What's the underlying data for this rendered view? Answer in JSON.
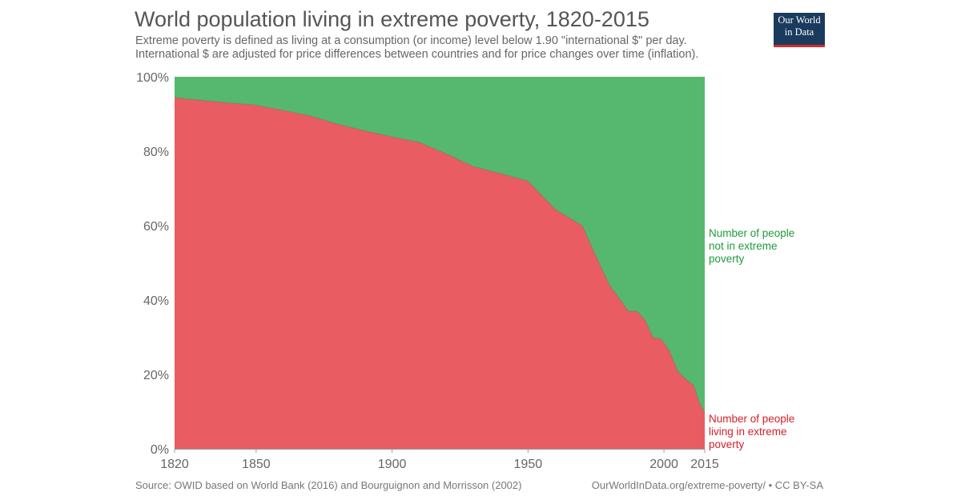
{
  "header": {
    "title": "World population living in extreme poverty, 1820-2015",
    "subtitle_line1": "Extreme poverty is defined as living at a consumption (or income) level below 1.90 \"international $\" per day.",
    "subtitle_line2": "International $ are adjusted for price differences between countries and for price changes over time (inflation)."
  },
  "logo": {
    "line1": "Our World",
    "line2": "in Data"
  },
  "footer": {
    "source": "Source: OWID based on World Bank (2016) and Bourguignon and Morrisson (2002)",
    "license": "OurWorldInData.org/extreme-poverty/ • CC BY-SA"
  },
  "colors": {
    "poverty": "#e95c62",
    "not_poverty": "#56b86f",
    "poverty_label": "#d6202a",
    "not_poverty_label": "#1f9a3d"
  },
  "chart_data": {
    "type": "area",
    "stacked": true,
    "percent": true,
    "title": "World population living in extreme poverty, 1820-2015",
    "xlabel": "",
    "ylabel": "",
    "xlim": [
      1820,
      2015
    ],
    "ylim": [
      0,
      100
    ],
    "x_ticks": [
      1820,
      1850,
      1900,
      1950,
      2000,
      2015
    ],
    "y_ticks": [
      "0%",
      "20%",
      "40%",
      "60%",
      "80%",
      "100%"
    ],
    "grid": true,
    "x": [
      1820,
      1830,
      1840,
      1850,
      1860,
      1870,
      1880,
      1890,
      1900,
      1910,
      1920,
      1930,
      1940,
      1950,
      1960,
      1970,
      1975,
      1980,
      1985,
      1987,
      1990,
      1993,
      1996,
      1999,
      2002,
      2005,
      2008,
      2011,
      2013,
      2015
    ],
    "series": [
      {
        "name": "Number of people living in extreme poverty",
        "label_lines": [
          "Number of people",
          "living in extreme",
          "poverty"
        ],
        "values": [
          94.4,
          93.7,
          93.0,
          92.4,
          91.0,
          89.5,
          87.3,
          85.5,
          83.9,
          82.4,
          79.3,
          75.9,
          74.0,
          72.0,
          64.4,
          60.0,
          51.8,
          44.0,
          39.0,
          37.0,
          37.0,
          34.7,
          30.0,
          29.5,
          26.4,
          21.0,
          18.8,
          17.0,
          12.5,
          9.6
        ]
      },
      {
        "name": "Number of people not in extreme poverty",
        "label_lines": [
          "Number of people",
          "not in extreme",
          "poverty"
        ],
        "values": [
          5.6,
          6.3,
          7.0,
          7.6,
          9.0,
          10.5,
          12.7,
          14.5,
          16.1,
          17.6,
          20.7,
          24.1,
          26.0,
          28.0,
          35.6,
          40.0,
          48.2,
          56.0,
          61.0,
          63.0,
          63.0,
          65.3,
          70.0,
          70.5,
          73.6,
          79.0,
          81.2,
          83.0,
          87.5,
          90.4
        ]
      }
    ]
  }
}
